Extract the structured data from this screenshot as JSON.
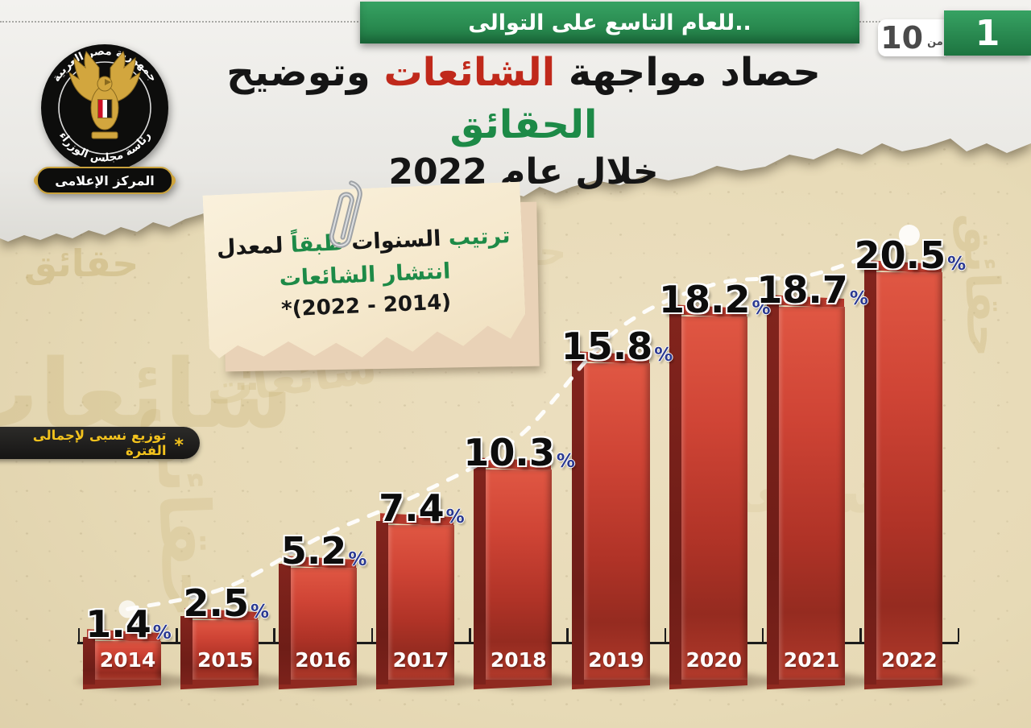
{
  "banner": {
    "text": "للعام التاسع على التوالى.."
  },
  "page_indicator": {
    "current": "1",
    "of_label": "من",
    "total": "10"
  },
  "logo": {
    "country": "جمهورية مصر العربية",
    "authority": "رئاسة مجلس الوزراء",
    "center": "المركز الإعلامى"
  },
  "title": {
    "line1_segments": [
      {
        "text": "حصاد مواجهة ",
        "color": "black"
      },
      {
        "text": "الشائعات",
        "color": "red"
      },
      {
        "text": " وتوضيح ",
        "color": "black"
      },
      {
        "text": "الحقائق",
        "color": "green"
      }
    ],
    "line2": "خلال عام 2022"
  },
  "note_card": {
    "line1_segments": [
      {
        "text": "ترتيب ",
        "color": "green"
      },
      {
        "text": "السنوات ",
        "color": "black"
      },
      {
        "text": "طبقاً ",
        "color": "green"
      },
      {
        "text": "لمعدل",
        "color": "black"
      }
    ],
    "line2": "انتشار الشائعات",
    "line3": "(2014 - 2022)*"
  },
  "footnote": {
    "asterisk": "*",
    "text": "توزيع نسبى لإجمالى الفترة"
  },
  "watermarks": [
    "حقائق",
    "شائعات",
    "حقائق",
    "شائعات",
    "حقائق",
    "شائعات",
    "حقائق",
    "شائعات"
  ],
  "colors": {
    "black": "#151515",
    "red": "#c0291b",
    "green": "#1d8a47",
    "percent_blue": "#2b3990",
    "bar_red": "#c63c2e",
    "badge_yellow": "#f2c21d",
    "banner_green": "#2a8c51"
  },
  "chart_data": {
    "type": "bar",
    "title": "ترتيب السنوات طبقاً لمعدل انتشار الشائعات (2014 - 2022)",
    "categories": [
      "2014",
      "2015",
      "2016",
      "2017",
      "2018",
      "2019",
      "2020",
      "2021",
      "2022"
    ],
    "values": [
      1.4,
      2.5,
      5.2,
      7.4,
      10.3,
      15.8,
      18.2,
      18.7,
      20.5
    ],
    "unit": "%",
    "ylim": [
      0,
      22
    ],
    "grid": false,
    "legend": "none",
    "trendline": {
      "style": "dashed",
      "color": "#ffffff",
      "endpoints": "dots"
    },
    "annotation": "توزيع نسبى لإجمالى الفترة"
  }
}
